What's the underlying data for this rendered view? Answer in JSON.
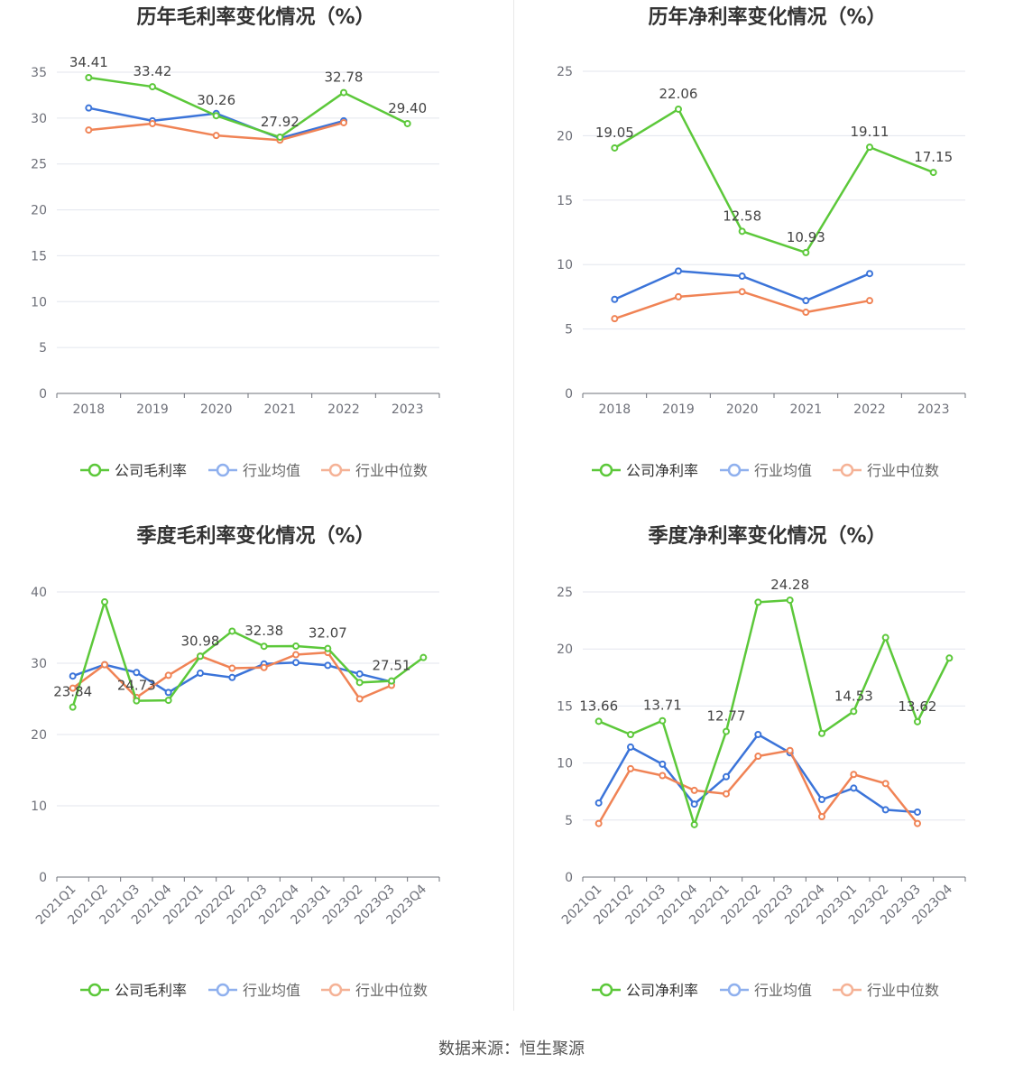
{
  "footer": {
    "source": "数据来源：恒生聚源"
  },
  "colors": {
    "company": "#5cc83a",
    "avg": "#3b74d9",
    "median": "#f08355"
  },
  "chart_data": [
    {
      "type": "line",
      "title": "历年毛利率变化情况（%）",
      "categories": [
        "2018",
        "2019",
        "2020",
        "2021",
        "2022",
        "2023"
      ],
      "ylim": [
        0,
        35
      ],
      "yticks": [
        0,
        5,
        10,
        15,
        20,
        25,
        30,
        35
      ],
      "grid": true,
      "legend": "bottom",
      "series": [
        {
          "name": "公司毛利率",
          "color": "#5cc83a",
          "values": [
            34.41,
            33.42,
            30.26,
            27.92,
            32.78,
            29.4
          ],
          "labels": [
            "34.41",
            "33.42",
            "30.26",
            "27.92",
            "32.78",
            "29.40"
          ]
        },
        {
          "name": "行业均值",
          "color": "#3b74d9",
          "values": [
            31.1,
            29.7,
            30.5,
            27.8,
            29.7,
            null
          ]
        },
        {
          "name": "行业中位数",
          "color": "#f08355",
          "values": [
            28.7,
            29.4,
            28.1,
            27.6,
            29.5,
            null
          ]
        }
      ]
    },
    {
      "type": "line",
      "title": "历年净利率变化情况（%）",
      "categories": [
        "2018",
        "2019",
        "2020",
        "2021",
        "2022",
        "2023"
      ],
      "ylim": [
        0,
        25
      ],
      "yticks": [
        0,
        5,
        10,
        15,
        20,
        25
      ],
      "grid": true,
      "legend": "bottom",
      "series": [
        {
          "name": "公司净利率",
          "color": "#5cc83a",
          "values": [
            19.05,
            22.06,
            12.58,
            10.93,
            19.11,
            17.15
          ],
          "labels": [
            "19.05",
            "22.06",
            "12.58",
            "10.93",
            "19.11",
            "17.15"
          ]
        },
        {
          "name": "行业均值",
          "color": "#3b74d9",
          "values": [
            7.3,
            9.5,
            9.1,
            7.2,
            9.3,
            null
          ]
        },
        {
          "name": "行业中位数",
          "color": "#f08355",
          "values": [
            5.8,
            7.5,
            7.9,
            6.3,
            7.2,
            null
          ]
        }
      ]
    },
    {
      "type": "line",
      "title": "季度毛利率变化情况（%）",
      "categories": [
        "2021Q1",
        "2021Q2",
        "2021Q3",
        "2021Q4",
        "2022Q1",
        "2022Q2",
        "2022Q3",
        "2022Q4",
        "2023Q1",
        "2023Q2",
        "2023Q3",
        "2023Q4"
      ],
      "ylim": [
        0,
        40
      ],
      "yticks": [
        0,
        10,
        20,
        30,
        40
      ],
      "grid": true,
      "legend": "bottom",
      "series": [
        {
          "name": "公司毛利率",
          "color": "#5cc83a",
          "values": [
            23.84,
            38.6,
            24.73,
            24.8,
            30.98,
            34.5,
            32.38,
            32.4,
            32.07,
            27.3,
            27.51,
            30.8
          ],
          "labels": [
            "23.84",
            null,
            "24.73",
            null,
            "30.98",
            null,
            "32.38",
            null,
            "32.07",
            null,
            "27.51",
            null
          ]
        },
        {
          "name": "行业均值",
          "color": "#3b74d9",
          "values": [
            28.2,
            29.8,
            28.7,
            25.9,
            28.6,
            28.0,
            29.9,
            30.1,
            29.7,
            28.5,
            27.4,
            null
          ]
        },
        {
          "name": "行业中位数",
          "color": "#f08355",
          "values": [
            26.5,
            29.8,
            25.2,
            28.3,
            31.0,
            29.3,
            29.4,
            31.2,
            31.5,
            25.0,
            26.9,
            null
          ]
        }
      ]
    },
    {
      "type": "line",
      "title": "季度净利率变化情况（%）",
      "categories": [
        "2021Q1",
        "2021Q2",
        "2021Q3",
        "2021Q4",
        "2022Q1",
        "2022Q2",
        "2022Q3",
        "2022Q4",
        "2023Q1",
        "2023Q2",
        "2023Q3",
        "2023Q4"
      ],
      "ylim": [
        0,
        25
      ],
      "yticks": [
        0,
        5,
        10,
        15,
        20,
        25
      ],
      "grid": true,
      "legend": "bottom",
      "series": [
        {
          "name": "公司净利率",
          "color": "#5cc83a",
          "values": [
            13.66,
            12.5,
            13.71,
            4.6,
            12.77,
            24.1,
            24.28,
            12.6,
            14.53,
            21.0,
            13.62,
            19.2
          ],
          "labels": [
            "13.66",
            null,
            "13.71",
            null,
            "12.77",
            null,
            "24.28",
            null,
            "14.53",
            null,
            "13.62",
            null
          ]
        },
        {
          "name": "行业均值",
          "color": "#3b74d9",
          "values": [
            6.5,
            11.4,
            9.9,
            6.4,
            8.8,
            12.5,
            10.9,
            6.8,
            7.8,
            5.9,
            5.7,
            null
          ]
        },
        {
          "name": "行业中位数",
          "color": "#f08355",
          "values": [
            4.7,
            9.5,
            8.9,
            7.6,
            7.3,
            10.6,
            11.1,
            5.3,
            9.0,
            8.2,
            4.7,
            null
          ]
        }
      ]
    }
  ]
}
